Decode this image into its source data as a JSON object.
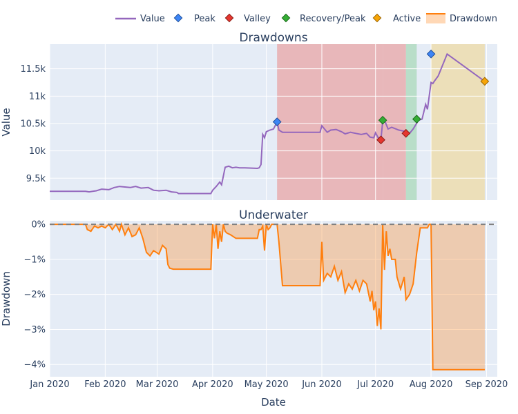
{
  "colors": {
    "value": "#9467bd",
    "drawdown": "#ff7f0e",
    "peak": "#3d85f5",
    "valley": "#e5362f",
    "recovery": "#35ad35",
    "active": "#f7a506",
    "plot_bg": "#e5ecf6",
    "region_recovered_a": "#e8a5a5",
    "region_recovered_b": "#a9d9b9",
    "region_active": "#eedba4"
  },
  "legend": {
    "value": "Value",
    "peak": "Peak",
    "valley": "Valley",
    "recovery": "Recovery/Peak",
    "active": "Active",
    "drawdown": "Drawdown"
  },
  "titles": {
    "top": "Drawdowns",
    "bottom": "Underwater",
    "y_top": "Value",
    "y_bottom": "Drawdown",
    "x": "Date"
  },
  "chart_data": [
    {
      "type": "line",
      "title": "Drawdowns",
      "xlabel": "",
      "ylabel": "Value",
      "xlim": [
        "2020-01-01",
        "2020-09-07"
      ],
      "ylim": [
        9100,
        11950
      ],
      "xtick_labels": [
        {
          "date": "2020-01-01",
          "label": "Jan 2020"
        },
        {
          "date": "2020-02-01",
          "label": "Feb 2020"
        },
        {
          "date": "2020-03-01",
          "label": "Mar 2020"
        },
        {
          "date": "2020-04-01",
          "label": "Apr 2020"
        },
        {
          "date": "2020-05-01",
          "label": "May 2020"
        },
        {
          "date": "2020-06-01",
          "label": "Jun 2020"
        },
        {
          "date": "2020-07-01",
          "label": "Jul 2020"
        },
        {
          "date": "2020-08-01",
          "label": "Aug 2020"
        },
        {
          "date": "2020-09-01",
          "label": "Sep 2020"
        }
      ],
      "ytick_labels": [
        {
          "value": 9500,
          "label": "9.5k"
        },
        {
          "value": 10000,
          "label": "10k"
        },
        {
          "value": 10500,
          "label": "10.5k"
        },
        {
          "value": 11000,
          "label": "11k"
        },
        {
          "value": 11500,
          "label": "11.5k"
        }
      ],
      "series": [
        {
          "name": "Value",
          "x": [
            "2020-01-01",
            "2020-01-21",
            "2020-01-23",
            "2020-01-25",
            "2020-01-27",
            "2020-01-30",
            "2020-02-03",
            "2020-02-06",
            "2020-02-09",
            "2020-02-12",
            "2020-02-15",
            "2020-02-18",
            "2020-02-21",
            "2020-02-25",
            "2020-02-28",
            "2020-03-02",
            "2020-03-06",
            "2020-03-09",
            "2020-03-12",
            "2020-03-13",
            "2020-03-24",
            "2020-03-31",
            "2020-04-01",
            "2020-04-03",
            "2020-04-05",
            "2020-04-06",
            "2020-04-08",
            "2020-04-10",
            "2020-04-12",
            "2020-04-14",
            "2020-04-16",
            "2020-04-19",
            "2020-04-26",
            "2020-04-27",
            "2020-04-28",
            "2020-04-29",
            "2020-04-30",
            "2020-05-01",
            "2020-05-03",
            "2020-05-05",
            "2020-05-07",
            "2020-05-08",
            "2020-05-10",
            "2020-05-28",
            "2020-05-31",
            "2020-06-01",
            "2020-06-04",
            "2020-06-06",
            "2020-06-09",
            "2020-06-12",
            "2020-06-14",
            "2020-06-17",
            "2020-06-20",
            "2020-06-23",
            "2020-06-26",
            "2020-06-28",
            "2020-06-30",
            "2020-07-01",
            "2020-07-03",
            "2020-07-04",
            "2020-07-05",
            "2020-07-06",
            "2020-07-08",
            "2020-07-10",
            "2020-07-14",
            "2020-07-17",
            "2020-07-18",
            "2020-07-20",
            "2020-07-22",
            "2020-07-25",
            "2020-07-27",
            "2020-07-29",
            "2020-07-30",
            "2020-08-01",
            "2020-08-02",
            "2020-08-03",
            "2020-08-05",
            "2020-08-10",
            "2020-08-31"
          ],
          "values": [
            9260,
            9260,
            9250,
            9260,
            9270,
            9300,
            9290,
            9330,
            9350,
            9340,
            9330,
            9350,
            9320,
            9330,
            9280,
            9270,
            9280,
            9250,
            9240,
            9220,
            9220,
            9220,
            9280,
            9350,
            9430,
            9380,
            9700,
            9720,
            9690,
            9700,
            9690,
            9690,
            9680,
            9690,
            9750,
            10300,
            10240,
            10350,
            10380,
            10400,
            10530,
            10380,
            10340,
            10340,
            10340,
            10460,
            10340,
            10380,
            10390,
            10350,
            10310,
            10340,
            10320,
            10300,
            10320,
            10250,
            10240,
            10330,
            10210,
            10200,
            10540,
            10560,
            10400,
            10430,
            10380,
            10360,
            10340,
            10320,
            10400,
            10560,
            10580,
            10850,
            10760,
            11250,
            11230,
            11280,
            11370,
            11770,
            11270
          ]
        }
      ],
      "markers": [
        {
          "name": "Peak",
          "points": [
            {
              "x": "2020-05-07",
              "y": 10530
            },
            {
              "x": "2020-08-01",
              "y": 11770
            }
          ]
        },
        {
          "name": "Valley",
          "points": [
            {
              "x": "2020-07-04",
              "y": 10200
            },
            {
              "x": "2020-07-18",
              "y": 10320
            }
          ]
        },
        {
          "name": "Recovery/Peak",
          "points": [
            {
              "x": "2020-07-05",
              "y": 10560
            },
            {
              "x": "2020-07-24",
              "y": 10580
            }
          ]
        },
        {
          "name": "Active",
          "points": [
            {
              "x": "2020-08-31",
              "y": 11270
            }
          ]
        }
      ],
      "regions": [
        {
          "start": "2020-05-07",
          "end": "2020-07-05",
          "kind": "recovered"
        },
        {
          "start": "2020-07-05",
          "end": "2020-07-18",
          "kind": "recovered"
        },
        {
          "start": "2020-07-18",
          "end": "2020-07-24",
          "kind": "recovery"
        },
        {
          "start": "2020-08-01",
          "end": "2020-08-31",
          "kind": "active"
        }
      ]
    },
    {
      "type": "area",
      "title": "Underwater",
      "xlabel": "Date",
      "ylabel": "Drawdown",
      "xlim": [
        "2020-01-01",
        "2020-09-07"
      ],
      "ylim": [
        -4.35,
        0.1
      ],
      "baseline": 0,
      "xtick_labels": [
        {
          "date": "2020-01-01",
          "label": "Jan 2020"
        },
        {
          "date": "2020-02-01",
          "label": "Feb 2020"
        },
        {
          "date": "2020-03-01",
          "label": "Mar 2020"
        },
        {
          "date": "2020-04-01",
          "label": "Apr 2020"
        },
        {
          "date": "2020-05-01",
          "label": "May 2020"
        },
        {
          "date": "2020-06-01",
          "label": "Jun 2020"
        },
        {
          "date": "2020-07-01",
          "label": "Jul 2020"
        },
        {
          "date": "2020-08-01",
          "label": "Aug 2020"
        },
        {
          "date": "2020-09-01",
          "label": "Sep 2020"
        }
      ],
      "ytick_labels": [
        {
          "value": 0,
          "label": "0%"
        },
        {
          "value": -1,
          "label": "−1%"
        },
        {
          "value": -2,
          "label": "−2%"
        },
        {
          "value": -3,
          "label": "−3%"
        },
        {
          "value": -4,
          "label": "−4%"
        }
      ],
      "series": [
        {
          "name": "Drawdown",
          "x": [
            "2020-01-01",
            "2020-01-21",
            "2020-01-22",
            "2020-01-24",
            "2020-01-26",
            "2020-01-28",
            "2020-01-30",
            "2020-02-01",
            "2020-02-03",
            "2020-02-05",
            "2020-02-07",
            "2020-02-09",
            "2020-02-10",
            "2020-02-12",
            "2020-02-14",
            "2020-02-16",
            "2020-02-18",
            "2020-02-20",
            "2020-02-22",
            "2020-02-24",
            "2020-02-26",
            "2020-02-28",
            "2020-03-02",
            "2020-03-04",
            "2020-03-06",
            "2020-03-07",
            "2020-03-08",
            "2020-03-10",
            "2020-03-13",
            "2020-03-15",
            "2020-03-31",
            "2020-04-01",
            "2020-04-02",
            "2020-04-03",
            "2020-04-04",
            "2020-04-05",
            "2020-04-06",
            "2020-04-07",
            "2020-04-08",
            "2020-04-09",
            "2020-04-11",
            "2020-04-14",
            "2020-04-24",
            "2020-04-26",
            "2020-04-27",
            "2020-04-28",
            "2020-04-29",
            "2020-04-30",
            "2020-05-01",
            "2020-05-02",
            "2020-05-03",
            "2020-05-04",
            "2020-05-06",
            "2020-05-07",
            "2020-05-08",
            "2020-05-10",
            "2020-05-31",
            "2020-06-01",
            "2020-06-02",
            "2020-06-04",
            "2020-06-06",
            "2020-06-08",
            "2020-06-10",
            "2020-06-12",
            "2020-06-14",
            "2020-06-16",
            "2020-06-18",
            "2020-06-20",
            "2020-06-22",
            "2020-06-24",
            "2020-06-26",
            "2020-06-28",
            "2020-06-29",
            "2020-06-30",
            "2020-07-01",
            "2020-07-02",
            "2020-07-03",
            "2020-07-04",
            "2020-07-05",
            "2020-07-06",
            "2020-07-07",
            "2020-07-08",
            "2020-07-09",
            "2020-07-10",
            "2020-07-12",
            "2020-07-13",
            "2020-07-15",
            "2020-07-17",
            "2020-07-18",
            "2020-07-20",
            "2020-07-22",
            "2020-07-24",
            "2020-07-26",
            "2020-07-28",
            "2020-07-30",
            "2020-07-31",
            "2020-08-01",
            "2020-08-02",
            "2020-08-31"
          ],
          "values": [
            0,
            0,
            -0.15,
            -0.2,
            -0.05,
            -0.1,
            -0.05,
            -0.1,
            0,
            -0.15,
            0,
            -0.2,
            0,
            -0.3,
            -0.1,
            -0.35,
            -0.3,
            -0.1,
            -0.4,
            -0.8,
            -0.9,
            -0.75,
            -0.85,
            -0.6,
            -0.7,
            -1.15,
            -1.25,
            -1.28,
            -1.28,
            -1.28,
            -1.28,
            0,
            -0.4,
            0,
            -0.7,
            -0.2,
            -0.5,
            0,
            -0.2,
            -0.25,
            -0.3,
            -0.4,
            -0.4,
            -0.4,
            -0.15,
            -0.15,
            -0.05,
            -0.75,
            0,
            -0.15,
            -0.1,
            0,
            0,
            0,
            -0.5,
            -1.75,
            -1.75,
            -0.5,
            -1.6,
            -1.4,
            -1.5,
            -1.2,
            -1.6,
            -1.35,
            -1.95,
            -1.7,
            -1.85,
            -1.6,
            -1.9,
            -1.6,
            -1.7,
            -2.2,
            -1.9,
            -2.45,
            -2.2,
            -2.9,
            -2.4,
            -3.0,
            0,
            -1.3,
            -0.2,
            -0.9,
            -0.7,
            -1.0,
            -1.0,
            -1.5,
            -1.85,
            -1.5,
            -2.15,
            -2.0,
            -1.7,
            -0.8,
            -0.1,
            -0.1,
            -0.1,
            0,
            0,
            -4.15,
            -4.15
          ]
        }
      ]
    }
  ]
}
